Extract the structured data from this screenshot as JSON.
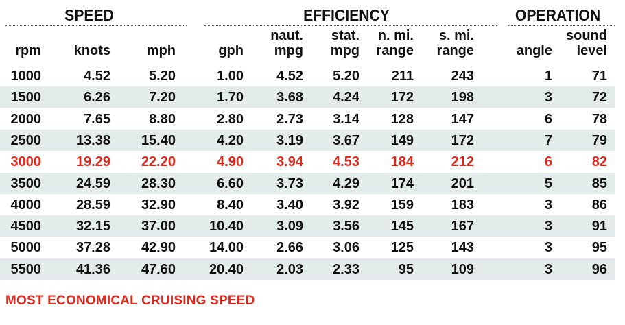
{
  "chart_data": {
    "type": "table",
    "groups": [
      {
        "key": "speed",
        "label": "SPEED"
      },
      {
        "key": "efficiency",
        "label": "EFFICIENCY"
      },
      {
        "key": "operation",
        "label": "OPERATION"
      }
    ],
    "columns": [
      {
        "key": "rpm",
        "header": [
          "rpm"
        ],
        "group": "speed"
      },
      {
        "key": "knots",
        "header": [
          "knots"
        ],
        "group": "speed"
      },
      {
        "key": "mph",
        "header": [
          "mph"
        ],
        "group": "speed"
      },
      {
        "key": "gph",
        "header": [
          "gph"
        ],
        "group": "efficiency"
      },
      {
        "key": "naut_mpg",
        "header": [
          "naut.",
          "mpg"
        ],
        "group": "efficiency"
      },
      {
        "key": "stat_mpg",
        "header": [
          "stat.",
          "mpg"
        ],
        "group": "efficiency"
      },
      {
        "key": "n_mi_range",
        "header": [
          "n. mi.",
          "range"
        ],
        "group": "efficiency"
      },
      {
        "key": "s_mi_range",
        "header": [
          "s. mi.",
          "range"
        ],
        "group": "efficiency"
      },
      {
        "key": "angle",
        "header": [
          "angle"
        ],
        "group": "operation"
      },
      {
        "key": "sound_level",
        "header": [
          "sound",
          "level"
        ],
        "group": "operation"
      }
    ],
    "rows": [
      [
        "1000",
        "4.52",
        "5.20",
        "1.00",
        "4.52",
        "5.20",
        "211",
        "243",
        "1",
        "71"
      ],
      [
        "1500",
        "6.26",
        "7.20",
        "1.70",
        "3.68",
        "4.24",
        "172",
        "198",
        "3",
        "72"
      ],
      [
        "2000",
        "7.65",
        "8.80",
        "2.80",
        "2.73",
        "3.14",
        "128",
        "147",
        "6",
        "78"
      ],
      [
        "2500",
        "13.38",
        "15.40",
        "4.20",
        "3.19",
        "3.67",
        "149",
        "172",
        "7",
        "79"
      ],
      [
        "3000",
        "19.29",
        "22.20",
        "4.90",
        "3.94",
        "4.53",
        "184",
        "212",
        "6",
        "82"
      ],
      [
        "3500",
        "24.59",
        "28.30",
        "6.60",
        "3.73",
        "4.29",
        "174",
        "201",
        "5",
        "85"
      ],
      [
        "4000",
        "28.59",
        "32.90",
        "8.40",
        "3.40",
        "3.92",
        "159",
        "183",
        "3",
        "86"
      ],
      [
        "4500",
        "32.15",
        "37.00",
        "10.40",
        "3.09",
        "3.56",
        "145",
        "167",
        "3",
        "91"
      ],
      [
        "5000",
        "37.28",
        "42.90",
        "14.00",
        "2.66",
        "3.06",
        "125",
        "143",
        "3",
        "95"
      ],
      [
        "5500",
        "41.36",
        "47.60",
        "20.40",
        "2.03",
        "2.33",
        "95",
        "109",
        "3",
        "96"
      ]
    ],
    "highlight_row": 4,
    "highlight_color": "#e1261c",
    "stripe_color": "#e3eceb",
    "footnote": "MOST ECONOMICAL CRUISING SPEED"
  }
}
